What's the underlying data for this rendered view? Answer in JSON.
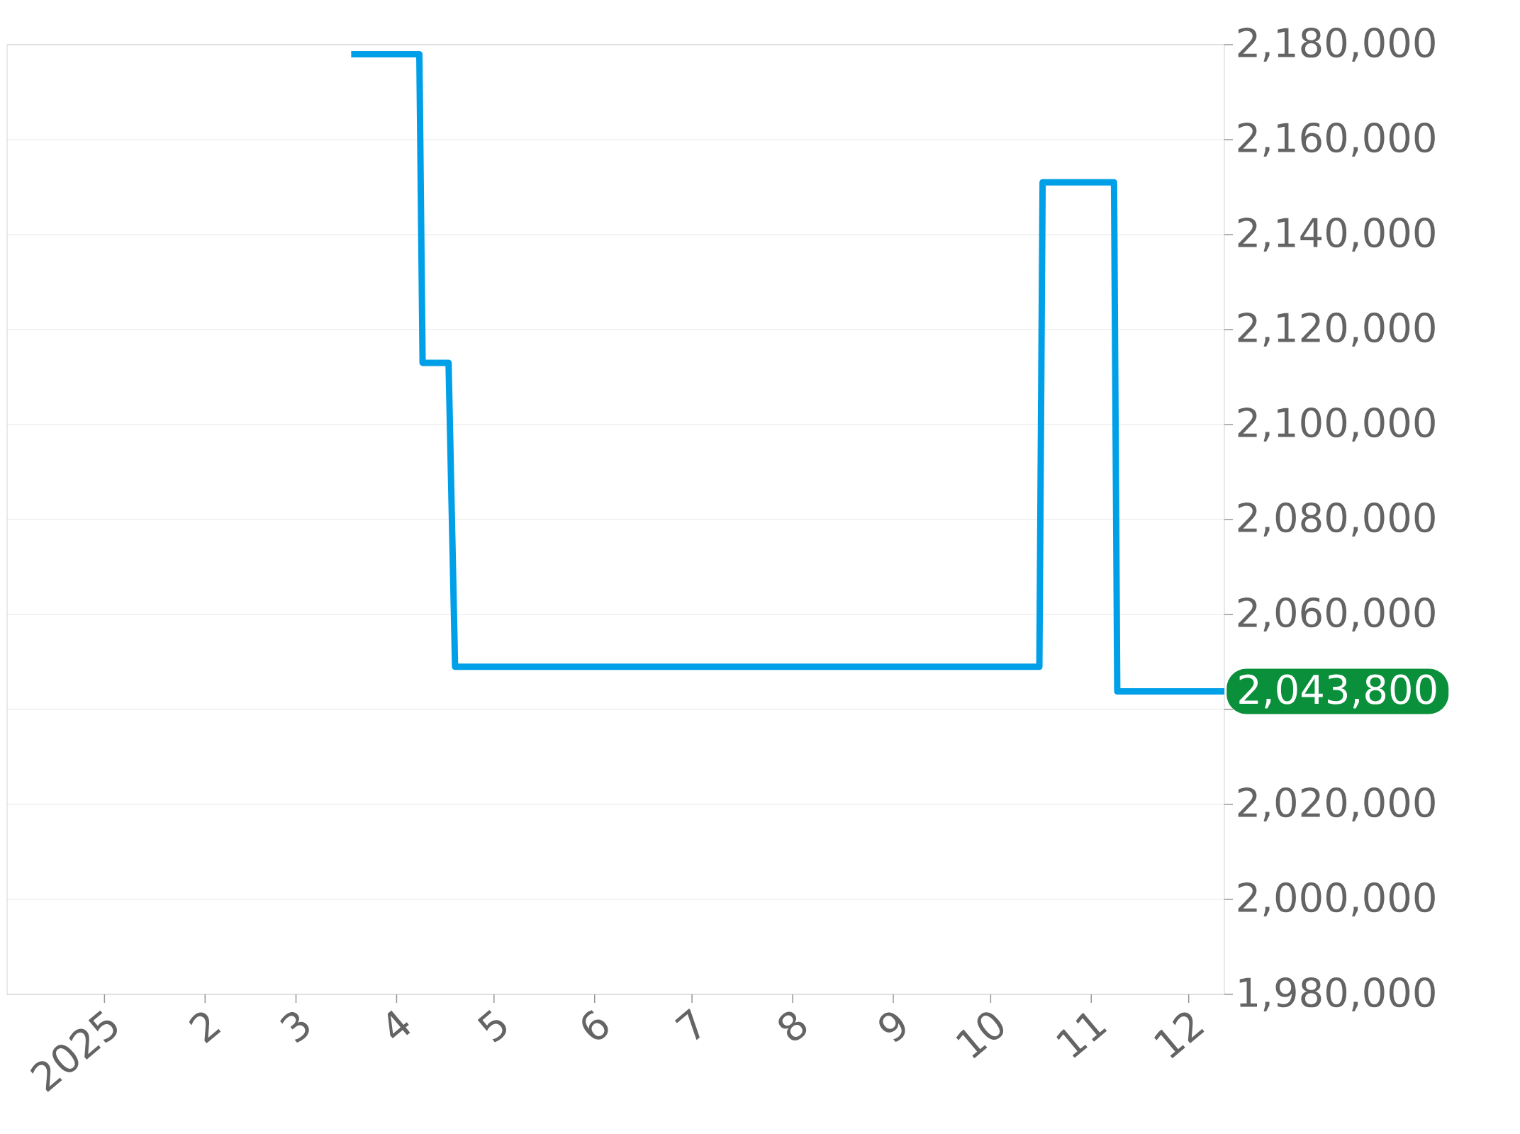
{
  "chart_data": {
    "type": "line",
    "x": [
      "2025-03-18",
      "2025-04-08",
      "2025-04-09",
      "2025-04-17",
      "2025-04-19",
      "2025-10-16",
      "2025-10-17",
      "2025-11-08",
      "2025-11-09",
      "2025-12-12"
    ],
    "values": [
      2178000,
      2178000,
      2113000,
      2113000,
      2049000,
      2049000,
      2151000,
      2151000,
      2043800,
      2043800
    ],
    "color": "#00a0e9",
    "line_style": "solid",
    "marker": "none",
    "grid": "y",
    "xlim": [
      "2024-12-02",
      "2025-12-12"
    ],
    "xticks": [
      {
        "value": "2025-01-01",
        "label": "2025"
      },
      {
        "value": "2025-02-01",
        "label": "2"
      },
      {
        "value": "2025-03-01",
        "label": "3"
      },
      {
        "value": "2025-04-01",
        "label": "4"
      },
      {
        "value": "2025-05-01",
        "label": "5"
      },
      {
        "value": "2025-06-01",
        "label": "6"
      },
      {
        "value": "2025-07-01",
        "label": "7"
      },
      {
        "value": "2025-08-01",
        "label": "8"
      },
      {
        "value": "2025-09-01",
        "label": "9"
      },
      {
        "value": "2025-10-01",
        "label": "10"
      },
      {
        "value": "2025-11-01",
        "label": "11"
      },
      {
        "value": "2025-12-01",
        "label": "12"
      }
    ],
    "ylim": [
      1980000,
      2180000
    ],
    "yticks": [
      {
        "value": 1980000,
        "label": "1,980,000"
      },
      {
        "value": 2000000,
        "label": "2,000,000"
      },
      {
        "value": 2020000,
        "label": "2,020,000"
      },
      {
        "value": 2040000,
        "label": null
      },
      {
        "value": 2060000,
        "label": "2,060,000"
      },
      {
        "value": 2080000,
        "label": "2,080,000"
      },
      {
        "value": 2100000,
        "label": "2,100,000"
      },
      {
        "value": 2120000,
        "label": "2,120,000"
      },
      {
        "value": 2140000,
        "label": "2,140,000"
      },
      {
        "value": 2160000,
        "label": "2,160,000"
      },
      {
        "value": 2180000,
        "label": "2,180,000"
      }
    ],
    "annotations": [
      {
        "text": "2,043,800",
        "x": "2025-12-12",
        "y": 2043800
      }
    ]
  }
}
